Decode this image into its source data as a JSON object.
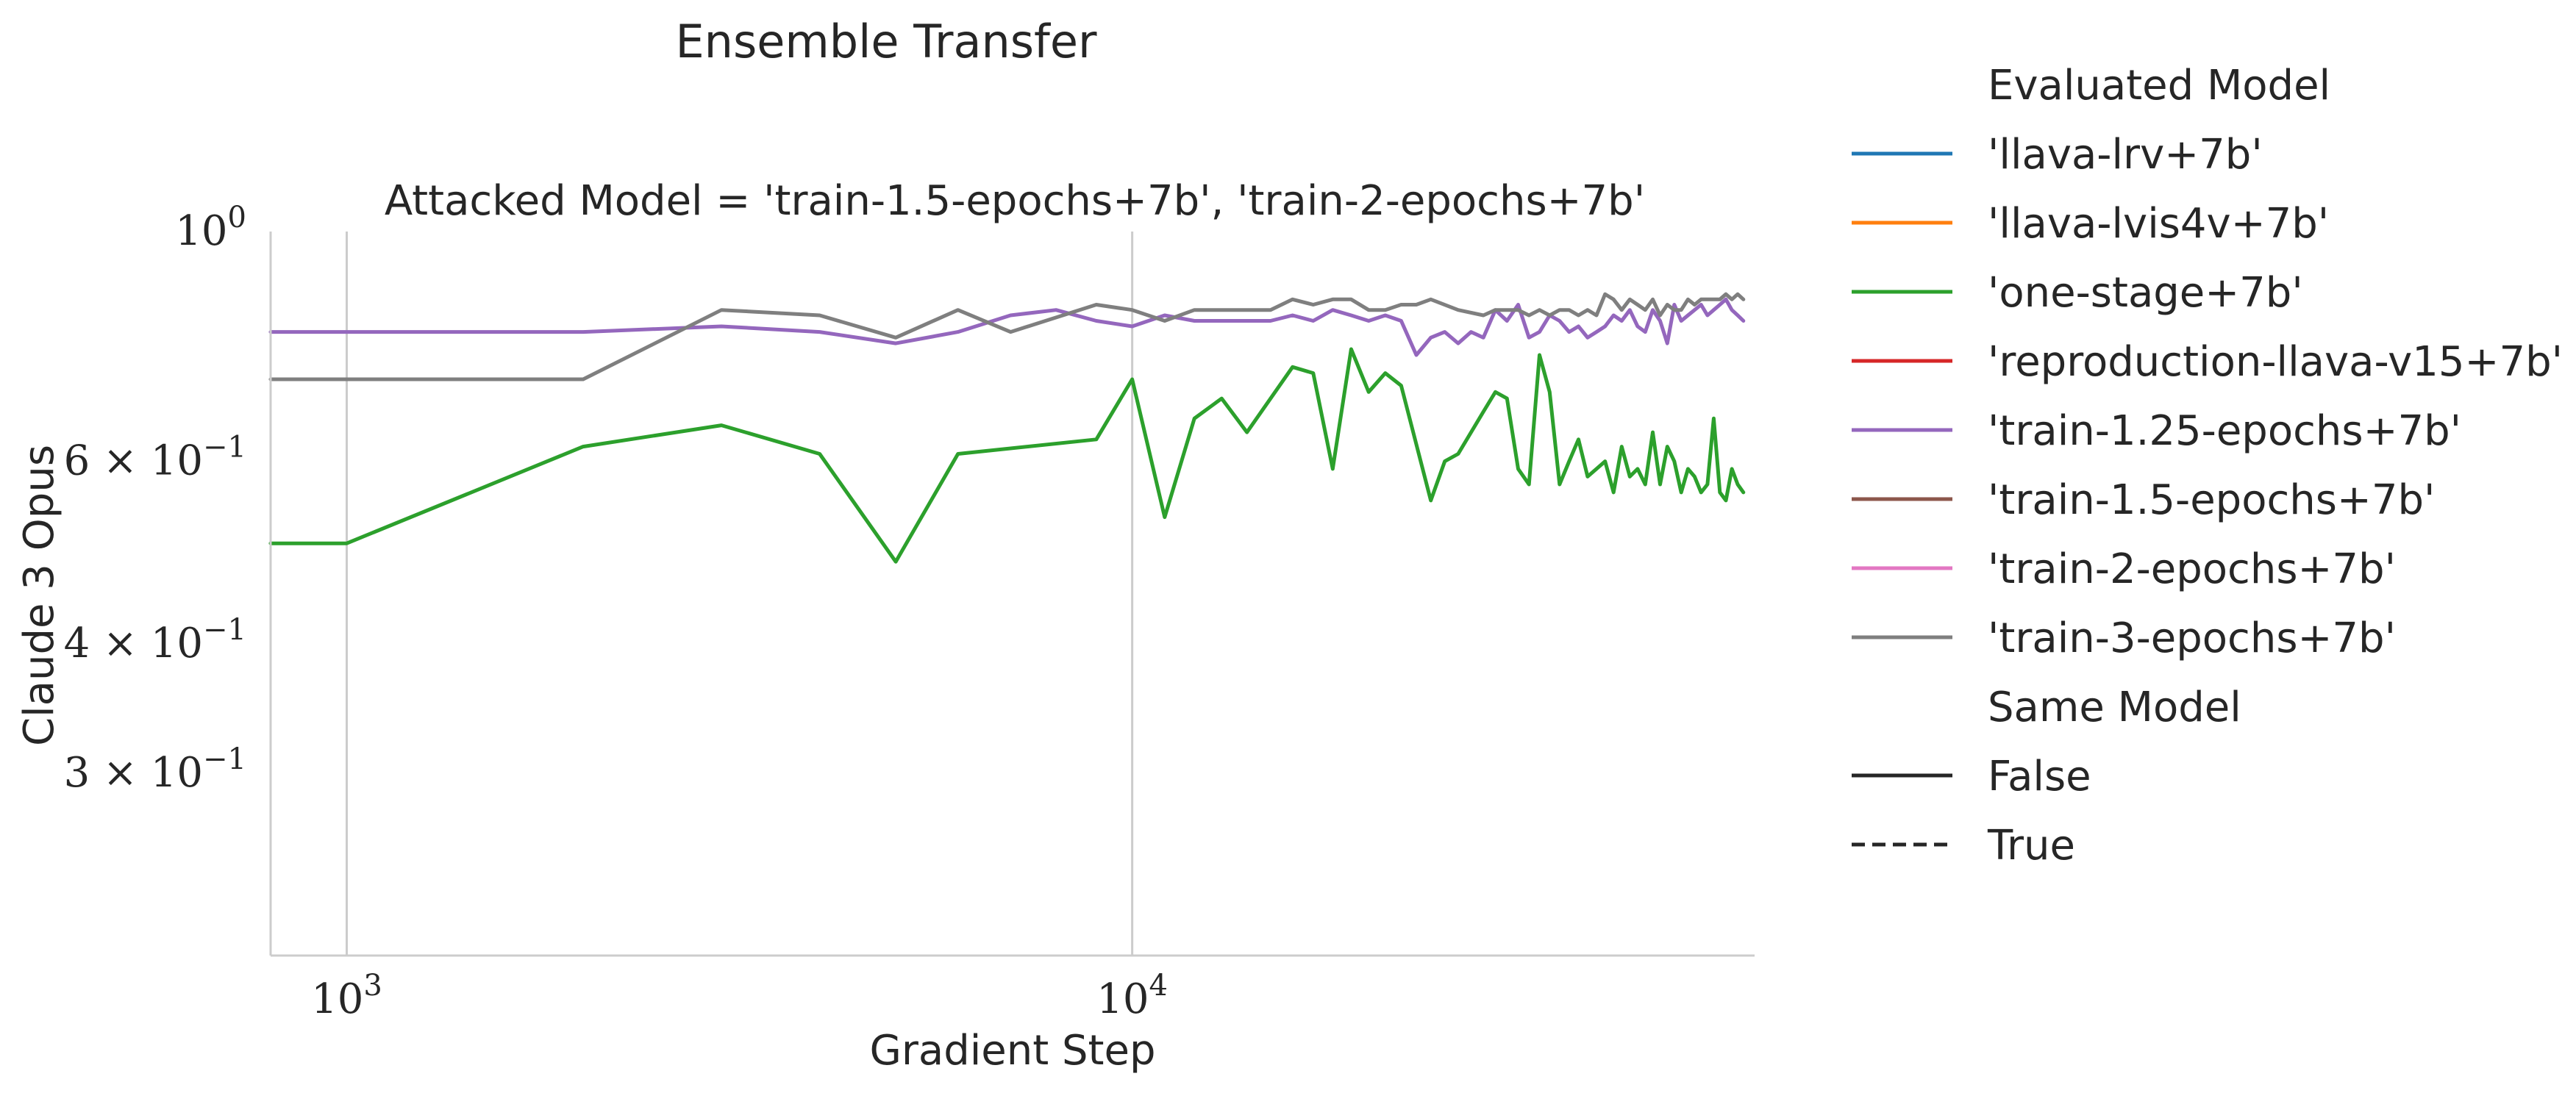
{
  "chart_data": {
    "type": "line",
    "title": "Ensemble Transfer",
    "subtitle": "Attacked Model = 'train-1.5-epochs+7b', 'train-2-epochs+7b'",
    "xlabel": "Gradient Step",
    "ylabel": "Claude 3 Opus",
    "x_scale": "log",
    "y_scale": "log",
    "xlim": [
      800,
      62000
    ],
    "ylim": [
      0.2,
      1.0
    ],
    "x_ticks": [
      {
        "value": 1000,
        "base": "10",
        "exp": "3"
      },
      {
        "value": 10000,
        "base": "10",
        "exp": "4"
      }
    ],
    "y_ticks": [
      {
        "value": 1.0,
        "coef": "",
        "base": "10",
        "exp": "0"
      },
      {
        "value": 0.6,
        "coef": "6 × ",
        "base": "10",
        "exp": "−1"
      },
      {
        "value": 0.4,
        "coef": "4 × ",
        "base": "10",
        "exp": "−1"
      },
      {
        "value": 0.3,
        "coef": "3 × ",
        "base": "10",
        "exp": "−1"
      }
    ],
    "grid": {
      "x": true,
      "y": false
    },
    "legend_position": "outside-right",
    "legend": {
      "hue_title": "Evaluated Model",
      "hue_entries": [
        {
          "label": "'llava-lrv+7b'",
          "color": "#1f77b4"
        },
        {
          "label": "'llava-lvis4v+7b'",
          "color": "#ff7f0e"
        },
        {
          "label": "'one-stage+7b'",
          "color": "#2ca02c"
        },
        {
          "label": "'reproduction-llava-v15+7b'",
          "color": "#d62728"
        },
        {
          "label": "'train-1.25-epochs+7b'",
          "color": "#9467bd"
        },
        {
          "label": "'train-1.5-epochs+7b'",
          "color": "#8c564b"
        },
        {
          "label": "'train-2-epochs+7b'",
          "color": "#e377c2"
        },
        {
          "label": "'train-3-epochs+7b'",
          "color": "#7f7f7f"
        }
      ],
      "style_title": "Same Model",
      "style_entries": [
        {
          "label": "False",
          "dash": "solid"
        },
        {
          "label": "True",
          "dash": "dashed"
        }
      ]
    },
    "series": [
      {
        "name": "'one-stage+7b'",
        "color": "#2ca02c",
        "x": [
          800,
          1000,
          2000,
          3000,
          4000,
          5000,
          6000,
          9000,
          10000,
          11000,
          12000,
          13000,
          14000,
          16000,
          17000,
          18000,
          19000,
          20000,
          21000,
          22000,
          24000,
          25000,
          26000,
          28000,
          29000,
          30000,
          31000,
          32000,
          33000,
          34000,
          35000,
          36000,
          37000,
          38000,
          39000,
          40000,
          41000,
          42000,
          43000,
          44000,
          45000,
          46000,
          47000,
          48000,
          49000,
          50000,
          51000,
          52000,
          53000,
          54000,
          55000,
          56000,
          57000,
          58000,
          59000,
          60000
        ],
        "y": [
          0.5,
          0.5,
          0.62,
          0.65,
          0.61,
          0.48,
          0.61,
          0.63,
          0.72,
          0.53,
          0.66,
          0.69,
          0.64,
          0.74,
          0.73,
          0.59,
          0.77,
          0.7,
          0.73,
          0.71,
          0.55,
          0.6,
          0.61,
          0.67,
          0.7,
          0.69,
          0.59,
          0.57,
          0.76,
          0.7,
          0.57,
          0.6,
          0.63,
          0.58,
          0.59,
          0.6,
          0.56,
          0.62,
          0.58,
          0.59,
          0.57,
          0.64,
          0.57,
          0.62,
          0.6,
          0.56,
          0.59,
          0.58,
          0.56,
          0.57,
          0.66,
          0.56,
          0.55,
          0.59,
          0.57,
          0.56
        ]
      },
      {
        "name": "'train-1.25-epochs+7b'",
        "color": "#9467bd",
        "x": [
          800,
          2000,
          3000,
          4000,
          5000,
          6000,
          7000,
          8000,
          9000,
          10000,
          11000,
          12000,
          13000,
          14000,
          15000,
          16000,
          17000,
          18000,
          19000,
          20000,
          21000,
          22000,
          23000,
          24000,
          25000,
          26000,
          27000,
          28000,
          29000,
          30000,
          31000,
          32000,
          33000,
          34000,
          35000,
          36000,
          37000,
          38000,
          39000,
          40000,
          41000,
          42000,
          43000,
          44000,
          45000,
          46000,
          47000,
          48000,
          49000,
          50000,
          51000,
          52000,
          53000,
          54000,
          55000,
          56000,
          57000,
          58000,
          59000,
          60000
        ],
        "y": [
          0.8,
          0.8,
          0.81,
          0.8,
          0.78,
          0.8,
          0.83,
          0.84,
          0.82,
          0.81,
          0.83,
          0.82,
          0.82,
          0.82,
          0.82,
          0.83,
          0.82,
          0.84,
          0.83,
          0.82,
          0.83,
          0.82,
          0.76,
          0.79,
          0.8,
          0.78,
          0.8,
          0.79,
          0.84,
          0.82,
          0.85,
          0.79,
          0.8,
          0.83,
          0.82,
          0.8,
          0.81,
          0.79,
          0.8,
          0.81,
          0.83,
          0.82,
          0.84,
          0.81,
          0.8,
          0.84,
          0.82,
          0.78,
          0.85,
          0.82,
          0.83,
          0.84,
          0.85,
          0.83,
          0.84,
          0.85,
          0.86,
          0.84,
          0.83,
          0.82
        ]
      },
      {
        "name": "'train-3-epochs+7b'",
        "color": "#7f7f7f",
        "x": [
          800,
          2000,
          3000,
          4000,
          5000,
          6000,
          7000,
          9000,
          10000,
          11000,
          12000,
          14000,
          15000,
          16000,
          17000,
          18000,
          19000,
          20000,
          21000,
          22000,
          23000,
          24000,
          26000,
          28000,
          29000,
          30000,
          31000,
          32000,
          33000,
          34000,
          35000,
          36000,
          37000,
          38000,
          39000,
          40000,
          41000,
          42000,
          43000,
          44000,
          45000,
          46000,
          47000,
          48000,
          49000,
          50000,
          51000,
          52000,
          53000,
          54000,
          55000,
          56000,
          57000,
          58000,
          59000,
          60000
        ],
        "y": [
          0.72,
          0.72,
          0.84,
          0.83,
          0.79,
          0.84,
          0.8,
          0.85,
          0.84,
          0.82,
          0.84,
          0.84,
          0.84,
          0.86,
          0.85,
          0.86,
          0.86,
          0.84,
          0.84,
          0.85,
          0.85,
          0.86,
          0.84,
          0.83,
          0.84,
          0.84,
          0.84,
          0.83,
          0.84,
          0.83,
          0.84,
          0.84,
          0.83,
          0.84,
          0.83,
          0.87,
          0.86,
          0.84,
          0.86,
          0.85,
          0.84,
          0.86,
          0.83,
          0.85,
          0.84,
          0.84,
          0.86,
          0.85,
          0.86,
          0.86,
          0.86,
          0.86,
          0.87,
          0.86,
          0.87,
          0.86
        ]
      }
    ]
  }
}
